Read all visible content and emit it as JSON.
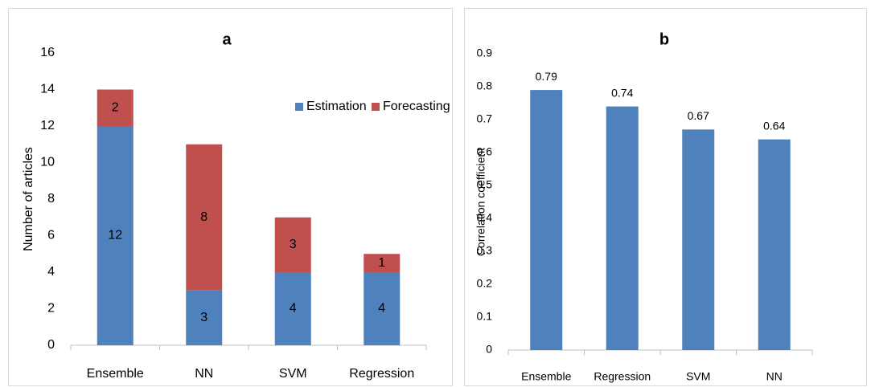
{
  "chart_data": [
    {
      "type": "stacked_bar",
      "title": "a",
      "y_label": "Number of articles",
      "categories": [
        "Ensemble",
        "NN",
        "SVM",
        "Regression"
      ],
      "series": [
        {
          "name": "Estimation",
          "color": "#4f81bd",
          "values": [
            12,
            3,
            4,
            4
          ]
        },
        {
          "name": "Forecasting",
          "color": "#c0504d",
          "values": [
            2,
            8,
            3,
            1
          ]
        }
      ],
      "ylim": [
        0,
        16
      ],
      "yticks": [
        0,
        2,
        4,
        6,
        8,
        10,
        12,
        14,
        16
      ],
      "grid": false,
      "legend": "top-right"
    },
    {
      "type": "bar",
      "title": "b",
      "y_label": "Correlation coefficient",
      "categories": [
        "Ensemble",
        "Regression",
        "SVM",
        "NN"
      ],
      "values": [
        0.79,
        0.74,
        0.67,
        0.64
      ],
      "color": "#4f81bd",
      "ylim": [
        0,
        0.9
      ],
      "yticks": [
        0,
        0.1,
        0.2,
        0.3,
        0.4,
        0.5,
        0.6,
        0.7,
        0.8,
        0.9
      ],
      "grid": false
    }
  ]
}
